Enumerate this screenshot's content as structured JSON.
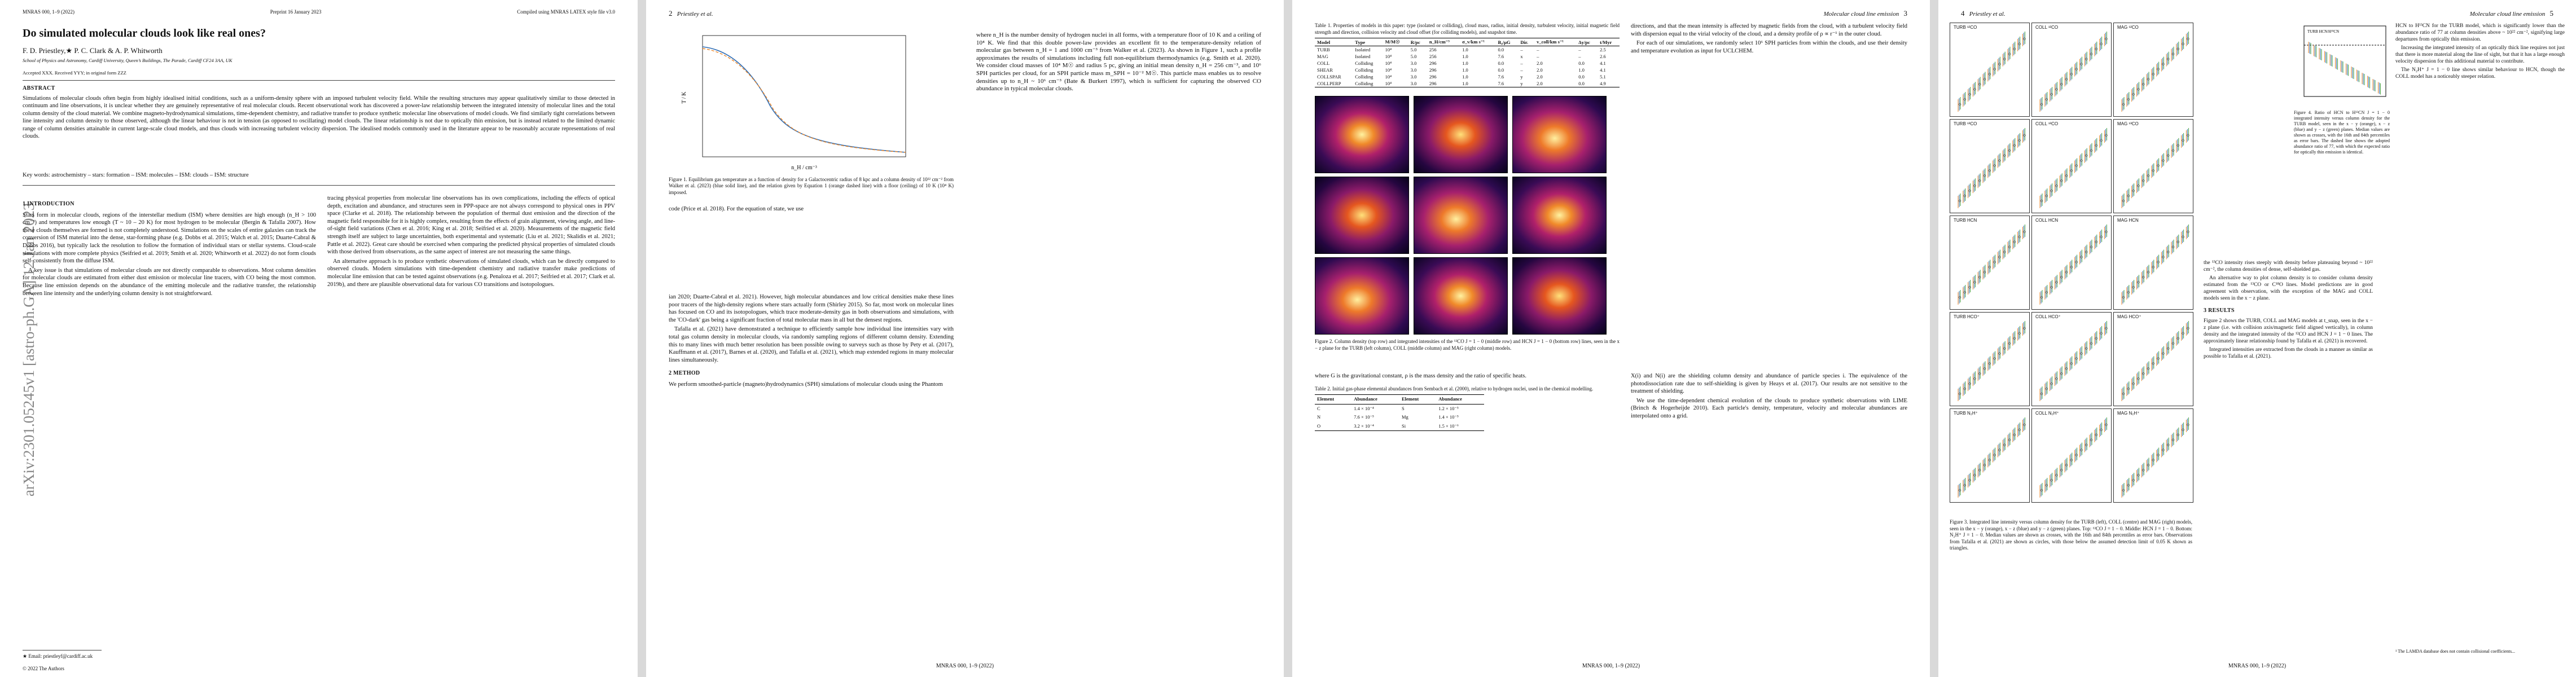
{
  "page1": {
    "header_left": "MNRAS 000, 1–9 (2022)",
    "header_mid": "Preprint 16 January 2023",
    "header_right": "Compiled using MNRAS LATEX style file v3.0",
    "title": "Do simulated molecular clouds look like real ones?",
    "authors": "F. D. Priestley,★ P. C. Clark & A. P. Whitworth",
    "affiliation": "School of Physics and Astronomy, Cardiff University, Queen’s Buildings, The Parade, Cardiff CF24 3AA, UK",
    "accepted": "Accepted XXX. Received YYY; in original form ZZZ",
    "abstract_heading": "ABSTRACT",
    "abstract": "Simulations of molecular clouds often begin from highly idealised initial conditions, such as a uniform-density sphere with an imposed turbulent velocity field. While the resulting structures may appear qualitatively similar to those detected in continuum and line observations, it is unclear whether they are genuinely representative of real molecular clouds. Recent observational work has discovered a power-law relationship between the integrated intensity of molecular lines and the total column density of the cloud material. We combine magneto-hydrodynamical simulations, time-dependent chemistry, and radiative transfer to produce synthetic molecular line observations of model clouds. We find similarly tight correlations between line intensity and column density to those observed, although the linear behaviour is not in tension (as opposed to oscillating) model clouds. The linear relationship is not due to optically thin emission, but is instead related to the limited dynamic range of column densities attainable in current large-scale cloud models, and thus clouds with increasing turbulent velocity dispersion. The idealised models commonly used in the literature appear to be reasonably accurate representations of real clouds.",
    "keywords": "Key words: astrochemistry – stars: formation – ISM: molecules – ISM: clouds – ISM: structure",
    "arxiv_stamp": "arXiv:2301.05245v1 [astro-ph.GA] 12 Jan 2023",
    "intro_heading": "1 INTRODUCTION",
    "intro_col1": [
      "Stars form in molecular clouds, regions of the interstellar medium (ISM) where densities are high enough (n_H > 100 cm⁻³) and temperatures low enough (T ~ 10 – 20 K) for most hydrogen to be molecular (Bergin & Tafalla 2007). How these clouds themselves are formed is not completely understood. Simulations on the scales of entire galaxies can track the conversion of ISM material into the dense, star-forming phase (e.g. Dobbs et al. 2015; Walch et al. 2015; Duarte-Cabral & Dobbs 2016), but typically lack the resolution to follow the formation of individual stars or stellar systems. Cloud-scale simulations with more complete physics (Seifried et al. 2019; Smith et al. 2020; Whitworth et al. 2022) do not form clouds self-consistently from the diffuse ISM.",
      "A key issue is that simulations of molecular clouds are not directly comparable to observations. Most column densities for molecular clouds are estimated from either dust emission or molecular line tracers, with CO being the most common. Because line emission depends on the abundance of the emitting molecule and the radiative transfer, the relationship between line intensity and the underlying column density is not straightforward."
    ],
    "intro_col2": [
      "tracing physical properties from molecular line observations has its own complications, including the effects of optical depth, excitation and abundance, and structures seen in PPP-space are not always correspond to physical ones in PPV space (Clarke et al. 2018). The relationship between the population of thermal dust emission and the direction of the magnetic field responsible for it is highly complex, resulting from the effects of grain alignment, viewing angle, and line-of-sight field variations (Chen et al. 2016; King et al. 2018; Seifried et al. 2020). Measurements of the magnetic field strength itself are subject to large uncertainties, both experimental and systematic (Liu et al. 2021; Skalidis et al. 2021; Pattle et al. 2022). Great care should be exercised when comparing the predicted physical properties of simulated clouds with those derived from observations, as the same aspect of interest are not measuring the same things.",
      "An alternative approach is to produce synthetic observations of simulated clouds, which can be directly compared to observed clouds. Modern simulations with time-dependent chemistry and radiative transfer make predictions of molecular line emission that can be tested against observations (e.g. Penaloza et al. 2017; Seifried et al. 2017; Clark et al. 2019b), and there are plausible observational data for various CO transitions and isotopologues."
    ],
    "footnote": "★ Email: priestleyf@cardiff.ac.uk",
    "copyright": "© 2022 The Authors"
  },
  "page2": {
    "page_num": "2",
    "running_head": "Priestley et al.",
    "col1_paras": [
      "code (Price et al. 2018). For the equation of state, we use",
      "where n_H is the number density of hydrogen nuclei in all forms, with a temperature floor of 10 K and a ceiling of 10⁴ K. We find that this double power-law provides an excellent fit to the temperature-density relation of molecular gas between n_H = 1 and 1000 cm⁻³ from Walker et al. (2023). As shown in Figure 1, such a profile approximates the results of simulations including full non-equilibrium thermodynamics (e.g. Smith et al. 2020). We consider cloud masses of 10⁴ M☉ and radius 5 pc, giving an initial mean density n_H = 256 cm⁻³, and 10⁶ SPH particles per cloud, for an SPH particle mass m_SPH = 10⁻² M☉. This particle mass enables us to resolve densities up to n_H ~ 10⁶ cm⁻³ (Bate & Burkert 1997), which is sufficient for capturing the observed CO abundance in typical molecular clouds."
    ],
    "fig1_caption": "Figure 1. Equilibrium gas temperature as a function of density for a Galactocentric radius of 8 kpc and a column density of 10²² cm⁻² from Walker et al. (2023) (blue solid line), and the relation given by Equation 1 (orange dashed line) with a floor (ceiling) of 10 K (10⁴ K) imposed.",
    "fig1_xlabel": "n_H / cm⁻³",
    "fig1_ylabel": "T / K",
    "col2_heading": "2 METHOD",
    "col2_paras": [
      "ian 2020; Duarte-Cabral et al. 2021). However, high molecular abundances and low critical densities make these lines poor tracers of the high-density regions where stars actually form (Shirley 2015). So far, most work on molecular lines has focused on CO and its isotopologues, which trace moderate-density gas in both observations and simulations, with the 'CO-dark' gas being a significant fraction of total molecular mass in all but the densest regions.",
      "Tafalla et al. (2021) have demonstrated a technique to efficiently sample how individual line intensities vary with total gas column density in molecular clouds, via randomly sampling regions of different column density. Extending this to many lines with much better resolution has been possible owing to surveys such as those by Pety et al. (2017), Kauffmann et al. (2017), Barnes et al. (2020), and Tafalla et al. (2021), which map extended regions in many molecular lines simultaneously.",
      "We perform smoothed-particle (magneto)hydrodynamics (SPH) simulations of molecular clouds using the Phantom"
    ]
  },
  "page3": {
    "running_head": "Molecular cloud line emission",
    "page_num": "3",
    "table1_caption": "Table 1. Properties of models in this paper: type (isolated or colliding), cloud mass, radius, initial density, turbulent velocity, initial magnetic field strength and direction, collision velocity and cloud offset (for colliding models), and snapshot time.",
    "table1_headers": [
      "Model",
      "Type",
      "M/M☉",
      "R/pc",
      "n_H/cm⁻³",
      "σ_v/km s⁻¹",
      "B₀/μG",
      "Dir.",
      "v_coll/km s⁻¹",
      "Δy/pc",
      "t/Myr"
    ],
    "table1_rows": [
      [
        "TURB",
        "Isolated",
        "10⁴",
        "5.0",
        "256",
        "1.0",
        "0.0",
        "–",
        "–",
        "–",
        "2.5"
      ],
      [
        "MAG",
        "Isolated",
        "10⁴",
        "5.0",
        "256",
        "1.0",
        "7.6",
        "x",
        "–",
        "–",
        "2.6"
      ],
      [
        "COLL",
        "Colliding",
        "10⁴",
        "3.0",
        "296",
        "1.0",
        "0.0",
        "–",
        "2.0",
        "0.0",
        "4.1"
      ],
      [
        "SHEAR",
        "Colliding",
        "10⁴",
        "3.0",
        "296",
        "1.0",
        "0.0",
        "–",
        "2.0",
        "1.0",
        "4.1"
      ],
      [
        "COLLSPAR",
        "Colliding",
        "10⁴",
        "3.0",
        "296",
        "1.0",
        "7.6",
        "y",
        "2.0",
        "0.0",
        "5.1"
      ],
      [
        "COLLPERP",
        "Colliding",
        "10⁴",
        "3.0",
        "296",
        "1.0",
        "7.6",
        "y",
        "2.0",
        "0.0",
        "4.9"
      ]
    ],
    "fig2_caption": "Figure 2. Column density (top row) and integrated intensities of the ¹²CO J = 1 − 0 (middle row) and HCN J = 1 − 0 (bottom row) lines, seen in the x − z plane for the TURB (left column), COLL (middle column) and MAG (right column) models.",
    "col1_heading": "",
    "col1_paras": [
      "directions, and that the mean intensity is affected by magnetic fields from the cloud, with a turbulent velocity field with dispersion equal to the virial velocity of the cloud, and a density profile of ρ ∝ r⁻¹ in the outer cloud.",
      "For each of our simulations, we randomly select 10⁶ SPH particles from within the clouds, and use their density and temperature evolution as input for UCLCHEM.",
      "where G is the gravitational constant, ρ is the mass density and the ratio of specific heats."
    ],
    "table2_caption": "Table 2. Initial gas-phase elemental abundances from Sembach et al. (2000), relative to hydrogen nuclei, used in the chemical modelling.",
    "table2_headers": [
      "Element",
      "Abundance",
      "Element",
      "Abundance"
    ],
    "table2_rows": [
      [
        "C",
        "1.4 × 10⁻⁴",
        "S",
        "1.2 × 10⁻⁵"
      ],
      [
        "N",
        "7.6 × 10⁻⁵",
        "Mg",
        "1.4 × 10⁻⁵"
      ],
      [
        "O",
        "3.2 × 10⁻⁴",
        "Si",
        "1.5 × 10⁻⁶"
      ]
    ],
    "col2_paras": [
      "X(i) and N(i) are the shielding column density and abundance of particle species i. The equivalence of the photodissociation rate due to self-shielding is given by Heays et al. (2017). Our results are not sensitive to the treatment of shielding.",
      "We use the time-dependent chemical evolution of the clouds to produce synthetic observations with LIME (Brinch & Hogerheijde 2010). Each particle's density, temperature, velocity and molecular abundances are interpolated onto a grid."
    ]
  },
  "page4": {
    "page_num": "4",
    "running_head": "Priestley et al.",
    "running_head_right": "Molecular cloud line emission",
    "page_num_right": "5",
    "panel_titles": [
      "TURB ¹²CO",
      "COLL ¹²CO",
      "MAG ¹²CO",
      "TURB ¹³CO",
      "COLL ¹³CO",
      "MAG ¹³CO",
      "TURB HCN",
      "COLL HCN",
      "MAG HCN",
      "TURB HCO⁺",
      "COLL HCO⁺",
      "MAG HCO⁺",
      "TURB N₂H⁺",
      "COLL N₂H⁺",
      "MAG N₂H⁺"
    ],
    "fig3_caption": "Figure 3. Integrated line intensity versus column density for the TURB (left), COLL (centre) and MAG (right) models, seen in the x − y (orange), x − z (blue) and y − z (green) planes. Top: ¹²CO J = 1 − 0. Middle: HCN J = 1 − 0. Bottom: N₂H⁺ J = 1 − 0. Median values are shown as crosses, with the 16th and 84th percentiles as error bars. Observations from Tafalla et al. (2021) are shown as circles, with those below the assumed detection limit of 0.05 K shown as triangles.",
    "fig4_title": "TURB HCN/H¹³CN",
    "fig4_caption": "Figure 4. Ratio of HCN to H¹³CN J = 1 − 0 integrated intensity versus column density for the TURB model, seen in the x − y (orange), x − z (blue) and y − z (green) planes. Median values are shown as crosses, with the 16th and 84th percentiles as error bars. The dashed line shows the adopted abundance ratio of 77, with which the expected ratio for optically thin emission is identical.",
    "col_a_paras": [
      "the ¹³CO intensity rises steeply with density before plateauing beyond ~ 10²² cm⁻², the column densities of dense, self-shielded gas.",
      "An alternative way to plot column density is to consider column density estimated from the ¹³CO or C¹⁸O lines. Model predictions are in good agreement with observation, with the exception of the MAG and COLL models seen in the x − z plane."
    ],
    "results_heading": "3 RESULTS",
    "col_b_paras": [
      "Figure 2 shows the TURB, COLL and MAG models at t_snap, seen in the x − z plane (i.e. with collision axis/magnetic field aligned vertically), in column density and the integrated intensity of the ¹²CO and HCN J = 1 − 0 lines. The approximately linear relationship found by Tafalla et al. (2021) is recovered.",
      "Integrated intensities are extracted from the clouds in a manner as similar as possible to Tafalla et al. (2021)."
    ],
    "col_c_paras": [
      "HCN to H¹³CN for the TURB model, which is significantly lower than the abundance ratio of 77 at column densities above ~ 10²² cm⁻², signifying large departures from optically thin emission.",
      "Increasing the integrated intensity of an optically thick line requires not just that there is more material along the line of sight, but that it has a large enough velocity dispersion for this additional material to contribute.",
      "The N₂H⁺ J = 1 − 0 line shows similar behaviour to HCN, though the COLL model has a noticeably steeper relation."
    ],
    "footnote_p5": "¹ The LAMDA database does not contain collisional coefficients..."
  },
  "footer": "MNRAS 000, 1–9 (2022)",
  "colors": {
    "link": "#2a4fbd",
    "orange": "#e8872d",
    "blue": "#2f6db5",
    "green": "#3c9c3c",
    "obs_grey": "#666666"
  }
}
